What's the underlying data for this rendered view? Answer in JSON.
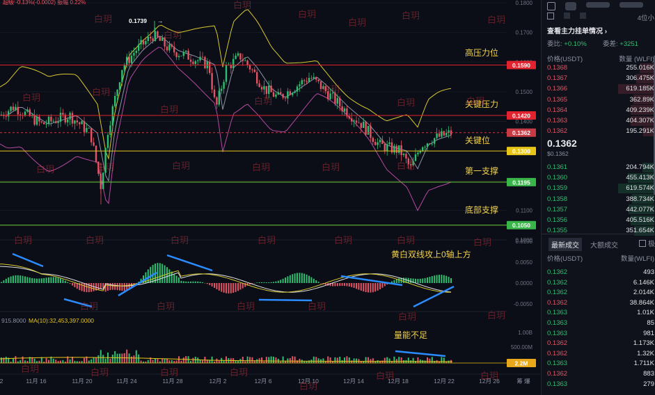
{
  "top_legend": "超级 -0.13%(-0.0002)  振幅 0.22%",
  "high_label": "0.1739",
  "annotations": [
    {
      "id": "high-pressure",
      "text": "高压力位",
      "color": "#f2d24b"
    },
    {
      "id": "key-pressure",
      "text": "关键压力",
      "color": "#f2d24b"
    },
    {
      "id": "key-level",
      "text": "关键位",
      "color": "#f2d24b"
    },
    {
      "id": "first-support",
      "text": "第一支撑",
      "color": "#f2d24b"
    },
    {
      "id": "bottom-support",
      "text": "底部支撑",
      "color": "#f2d24b"
    },
    {
      "id": "macd-note",
      "text": "黄白双线攻上0轴上方",
      "color": "#f2d24b"
    },
    {
      "id": "volume-note",
      "text": "量能不足",
      "color": "#f2d24b"
    }
  ],
  "levels": [
    {
      "value": "0.1590",
      "color": "#e0232e",
      "line": "#e0232e"
    },
    {
      "value": "0.1420",
      "color": "#e0232e",
      "line": "#e0232e"
    },
    {
      "value": "0.1362",
      "color": "#c93b44",
      "line": "#c93b44"
    },
    {
      "value": "0.1300",
      "color": "#e8c618",
      "line": "#e8c618"
    },
    {
      "value": "0.1195",
      "color": "#39b54a",
      "line": "#6fcf3a"
    },
    {
      "value": "0.1050",
      "color": "#39b54a",
      "line": "#6fcf3a"
    }
  ],
  "price_axis": [
    "0.1800",
    "0.1700",
    "0.1600",
    "0.1500",
    "0.1400",
    "0.1300",
    "0.1200",
    "0.1100",
    "0.1000"
  ],
  "macd_axis": [
    "0.0100",
    "0.0050",
    "0.0000",
    "-0.0050"
  ],
  "vol_axis": [
    "1.00B",
    "500.00M"
  ],
  "vol_tag": "2.2M",
  "vol_legend_a": "915.8000",
  "vol_legend_b": "MA(10):32,453,397.0000",
  "x_axis": [
    "2",
    "11月 16",
    "11月 20",
    "11月 24",
    "11月 28",
    "12月 2",
    "12月 6",
    "12月 10",
    "12月 14",
    "12月 18",
    "12月 22",
    "12月 26"
  ],
  "corner_icons": "筹  爆",
  "watermark": "白玥",
  "orderbook": {
    "title": "查看主力挂单情况 ›",
    "commission_ratio_label": "委比:",
    "commission_ratio": "+0.10%",
    "commission_diff_label": "委差:",
    "commission_diff": "+3251",
    "col_price": "价格(USDT)",
    "col_qty": "数量 (WLFI)",
    "asks": [
      {
        "price": "0.1368",
        "qty": "255.016K"
      },
      {
        "price": "0.1367",
        "qty": "306.475K"
      },
      {
        "price": "0.1366",
        "qty": "619.185K"
      },
      {
        "price": "0.1365",
        "qty": "362.89K"
      },
      {
        "price": "0.1364",
        "qty": "409.239K"
      },
      {
        "price": "0.1363",
        "qty": "404.307K"
      },
      {
        "price": "0.1362",
        "qty": "195.291K"
      }
    ],
    "last_price": "0.1362",
    "last_price_usd": "$0.1362",
    "bids": [
      {
        "price": "0.1361",
        "qty": "204.794K"
      },
      {
        "price": "0.1360",
        "qty": "455.413K"
      },
      {
        "price": "0.1359",
        "qty": "619.574K"
      },
      {
        "price": "0.1358",
        "qty": "388.734K"
      },
      {
        "price": "0.1357",
        "qty": "442.077K"
      },
      {
        "price": "0.1356",
        "qty": "405.516K"
      },
      {
        "price": "0.1355",
        "qty": "351.654K"
      }
    ],
    "tab_latest": "最新成交",
    "tab_large": "大额成交",
    "checkbox_label": "极",
    "depth_label": "4位小",
    "trades_col_price": "价格(USDT)",
    "trades_col_qty": "数量(WLFI)",
    "trades": [
      {
        "price": "0.1362",
        "qty": "493",
        "side": "green"
      },
      {
        "price": "0.1362",
        "qty": "6.146K",
        "side": "green"
      },
      {
        "price": "0.1362",
        "qty": "2.014K",
        "side": "green"
      },
      {
        "price": "0.1362",
        "qty": "38.864K",
        "side": "red"
      },
      {
        "price": "0.1363",
        "qty": "1.01K",
        "side": "green"
      },
      {
        "price": "0.1363",
        "qty": "85",
        "side": "green"
      },
      {
        "price": "0.1363",
        "qty": "981",
        "side": "green"
      },
      {
        "price": "0.1362",
        "qty": "1.173K",
        "side": "red"
      },
      {
        "price": "0.1362",
        "qty": "1.32K",
        "side": "red"
      },
      {
        "price": "0.1363",
        "qty": "1.711K",
        "side": "green"
      },
      {
        "price": "0.1362",
        "qty": "883",
        "side": "red"
      },
      {
        "price": "0.1363",
        "qty": "279",
        "side": "green"
      }
    ]
  }
}
